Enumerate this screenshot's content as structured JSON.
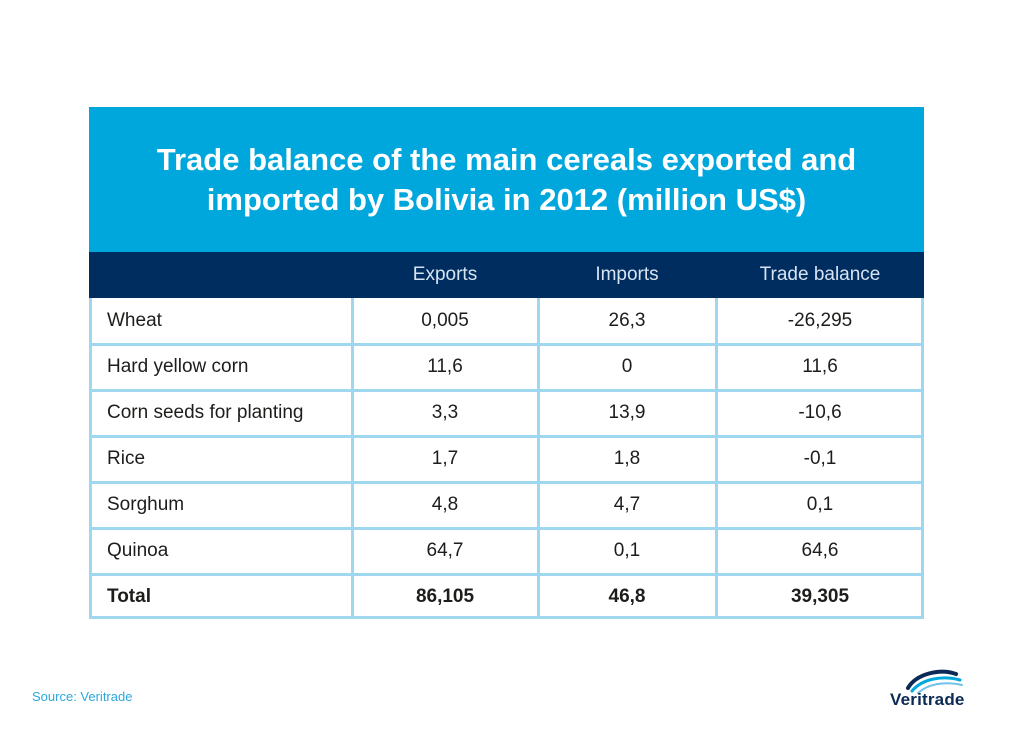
{
  "chart_data": {
    "type": "table",
    "title": "Trade balance of the main cereals exported and imported by Bolivia in 2012 (million US$)",
    "columns": [
      "",
      "Exports",
      "Imports",
      "Trade balance"
    ],
    "rows": [
      {
        "label": "Wheat",
        "exports": "0,005",
        "imports": "26,3",
        "balance": "-26,295"
      },
      {
        "label": "Hard yellow corn",
        "exports": "11,6",
        "imports": "0",
        "balance": "11,6"
      },
      {
        "label": "Corn seeds for planting",
        "exports": "3,3",
        "imports": "13,9",
        "balance": "-10,6"
      },
      {
        "label": "Rice",
        "exports": "1,7",
        "imports": "1,8",
        "balance": "-0,1"
      },
      {
        "label": "Sorghum",
        "exports": "4,8",
        "imports": "4,7",
        "balance": "0,1"
      },
      {
        "label": "Quinoa",
        "exports": "64,7",
        "imports": "0,1",
        "balance": "64,6"
      },
      {
        "label": "Total",
        "exports": "86,105",
        "imports": "46,8",
        "balance": "39,305"
      }
    ]
  },
  "footer": {
    "source": "Source: Veritrade",
    "logo_text": "Veritrade"
  },
  "colors": {
    "title_band": "#00A7DD",
    "header_row": "#002D5F",
    "grid_lines": "#9ED7EF"
  }
}
